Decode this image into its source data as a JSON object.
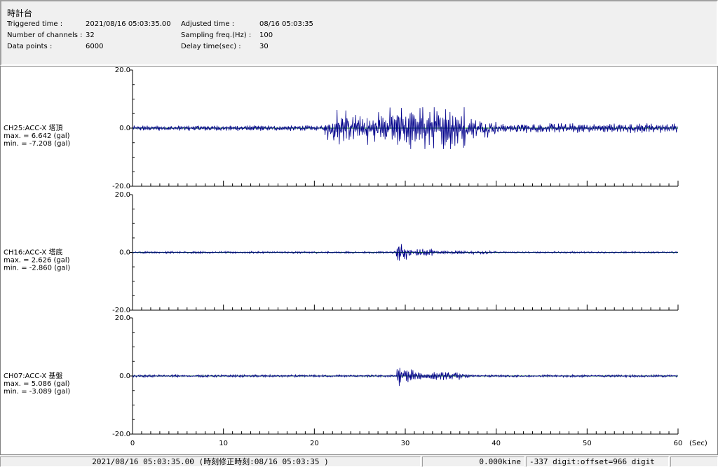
{
  "header": {
    "station": "時計台",
    "triggered_label": "Triggered time :",
    "triggered_value": "2021/08/16 05:03:35.00",
    "channels_label": "Number of channels :",
    "channels_value": "32",
    "points_label": "Data points :",
    "points_value": "6000",
    "adjusted_label": "Adjusted time :",
    "adjusted_value": "08/16 05:03:35",
    "sampling_label": "Sampling freq.(Hz) :",
    "sampling_value": "100",
    "delay_label": "Delay time(sec) :",
    "delay_value": "30"
  },
  "chart_data": {
    "type": "line",
    "xlabel": "(Sec)",
    "xlim": [
      0,
      60
    ],
    "xticks": [
      "0",
      "10",
      "20",
      "30",
      "40",
      "50",
      "60"
    ],
    "ylim": [
      -20,
      20
    ],
    "yticks": [
      "20.0",
      "0.0",
      "-20.0"
    ],
    "colors": {
      "waveform": "#00008b",
      "zero_line": "#008000"
    },
    "channels": [
      {
        "name": "CH25:ACC-X 塔頂",
        "max": "max. = 6.642 (gal)",
        "min": "min. = -7.208 (gal)",
        "peak_max": 6.642,
        "peak_min": -7.208
      },
      {
        "name": "CH16:ACC-X 塔底",
        "max": "max. = 2.626 (gal)",
        "min": "min. = -2.860 (gal)",
        "peak_max": 2.626,
        "peak_min": -2.86
      },
      {
        "name": "CH07:ACC-X 基盤",
        "max": "max. = 5.086 (gal)",
        "min": "min. = -3.089 (gal)",
        "peak_max": 5.086,
        "peak_min": -3.089
      }
    ]
  },
  "status": {
    "time": "2021/08/16 05:03:35.00  (時刻修正時刻:08/16 05:03:35  )",
    "velocity": "0.000kine",
    "digit": "-337 digit:offset=966 digit",
    "extra": ""
  }
}
